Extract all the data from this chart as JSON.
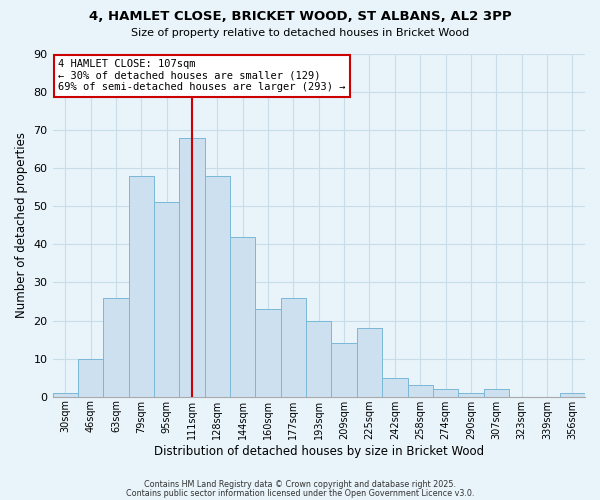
{
  "title": "4, HAMLET CLOSE, BRICKET WOOD, ST ALBANS, AL2 3PP",
  "subtitle": "Size of property relative to detached houses in Bricket Wood",
  "xlabel": "Distribution of detached houses by size in Bricket Wood",
  "ylabel": "Number of detached properties",
  "bar_labels": [
    "30sqm",
    "46sqm",
    "63sqm",
    "79sqm",
    "95sqm",
    "111sqm",
    "128sqm",
    "144sqm",
    "160sqm",
    "177sqm",
    "193sqm",
    "209sqm",
    "225sqm",
    "242sqm",
    "258sqm",
    "274sqm",
    "290sqm",
    "307sqm",
    "323sqm",
    "339sqm",
    "356sqm"
  ],
  "bar_values": [
    1,
    10,
    26,
    58,
    51,
    68,
    58,
    42,
    23,
    26,
    20,
    14,
    18,
    5,
    3,
    2,
    1,
    2,
    0,
    0,
    1
  ],
  "bar_color": "#cde0f0",
  "bar_edge_color": "#7ab8d8",
  "grid_color": "#c8dde8",
  "bg_color": "#e8f4fa",
  "vline_x_index": 5,
  "vline_color": "#cc0000",
  "annotation_line1": "4 HAMLET CLOSE: 107sqm",
  "annotation_line2": "← 30% of detached houses are smaller (129)",
  "annotation_line3": "69% of semi-detached houses are larger (293) →",
  "annotation_box_facecolor": "#ffffff",
  "annotation_box_edgecolor": "#cc0000",
  "ylim": [
    0,
    90
  ],
  "yticks": [
    0,
    10,
    20,
    30,
    40,
    50,
    60,
    70,
    80,
    90
  ],
  "footer1": "Contains HM Land Registry data © Crown copyright and database right 2025.",
  "footer2": "Contains public sector information licensed under the Open Government Licence v3.0."
}
